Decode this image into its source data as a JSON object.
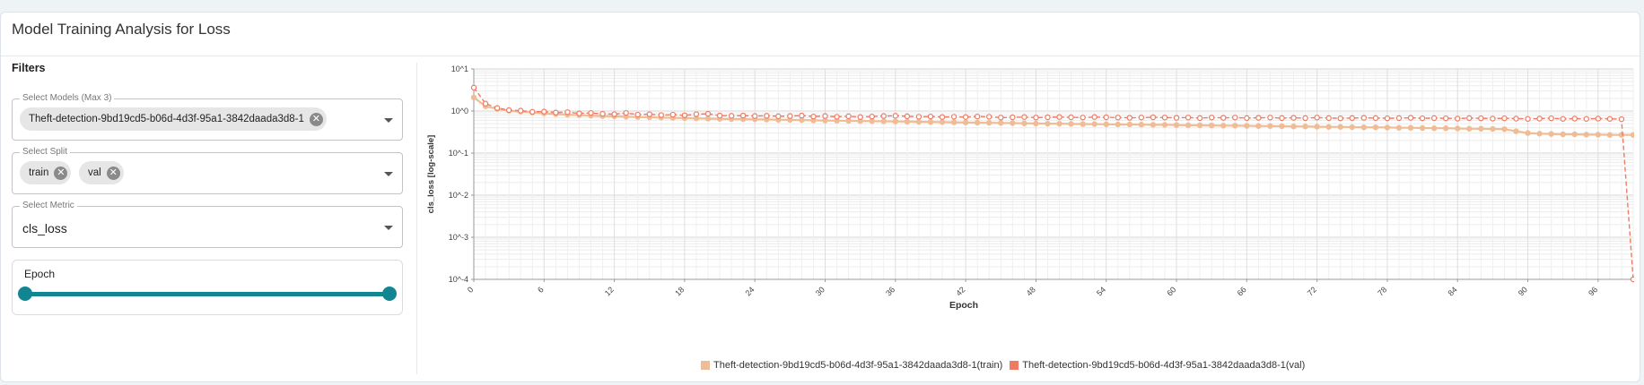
{
  "card": {
    "title": "Model Training Analysis for Loss"
  },
  "filters": {
    "heading": "Filters",
    "models": {
      "legend": "Select Models (Max 3)",
      "chips": [
        "Theft-detection-9bd19cd5-b06d-4d3f-95a1-3842daada3d8-1"
      ]
    },
    "split": {
      "legend": "Select Split",
      "chips": [
        "train",
        "val"
      ]
    },
    "metric": {
      "legend": "Select Metric",
      "value": "cls_loss"
    },
    "epoch_slider": {
      "label": "Epoch",
      "range": [
        0,
        99
      ],
      "value": [
        0,
        99
      ]
    }
  },
  "icons": {
    "chip_remove": "close-circle-icon",
    "dropdown": "chevron-down-icon"
  },
  "colors": {
    "accent": "#128593",
    "train": "#f0bc96",
    "val": "#f07a62"
  },
  "chart_data": {
    "type": "line",
    "xlabel": "Epoch",
    "ylabel": "cls_loss [log-scale]",
    "yscale": "log",
    "ylim": [
      0.0001,
      10
    ],
    "xlim": [
      0,
      99
    ],
    "ytick_labels": [
      "10^1",
      "10^0",
      "10^-1",
      "10^-2",
      "10^-3",
      "10^-4"
    ],
    "xticks": [
      0,
      6,
      12,
      18,
      24,
      30,
      36,
      42,
      48,
      54,
      60,
      66,
      72,
      78,
      84,
      90,
      96
    ],
    "grid": true,
    "legend_position": "bottom",
    "series": [
      {
        "name": "Theft-detection-9bd19cd5-b06d-4d3f-95a1-3842daada3d8-1(train)",
        "color": "#f0bc96",
        "values": [
          2.1,
          1.3,
          1.12,
          1.02,
          0.97,
          0.92,
          0.88,
          0.85,
          0.82,
          0.8,
          0.78,
          0.76,
          0.75,
          0.73,
          0.72,
          0.71,
          0.7,
          0.69,
          0.68,
          0.67,
          0.66,
          0.65,
          0.645,
          0.64,
          0.635,
          0.63,
          0.62,
          0.615,
          0.61,
          0.6,
          0.595,
          0.59,
          0.585,
          0.58,
          0.575,
          0.57,
          0.565,
          0.56,
          0.555,
          0.55,
          0.545,
          0.54,
          0.535,
          0.53,
          0.525,
          0.52,
          0.515,
          0.51,
          0.505,
          0.5,
          0.5,
          0.495,
          0.49,
          0.49,
          0.485,
          0.48,
          0.48,
          0.475,
          0.47,
          0.47,
          0.465,
          0.46,
          0.46,
          0.455,
          0.45,
          0.45,
          0.445,
          0.44,
          0.44,
          0.435,
          0.43,
          0.43,
          0.425,
          0.42,
          0.42,
          0.415,
          0.41,
          0.41,
          0.405,
          0.4,
          0.4,
          0.395,
          0.39,
          0.39,
          0.385,
          0.38,
          0.38,
          0.375,
          0.37,
          0.33,
          0.3,
          0.29,
          0.285,
          0.28,
          0.28,
          0.275,
          0.275,
          0.27,
          0.27,
          0.27
        ]
      },
      {
        "name": "Theft-detection-9bd19cd5-b06d-4d3f-95a1-3842daada3d8-1(val)",
        "color": "#f07a62",
        "values": [
          3.6,
          1.5,
          1.18,
          1.05,
          1.02,
          0.96,
          0.97,
          0.92,
          0.94,
          0.88,
          0.9,
          0.86,
          0.84,
          0.9,
          0.82,
          0.84,
          0.8,
          0.82,
          0.79,
          0.84,
          0.86,
          0.78,
          0.77,
          0.78,
          0.76,
          0.77,
          0.75,
          0.76,
          0.78,
          0.74,
          0.76,
          0.73,
          0.75,
          0.72,
          0.74,
          0.76,
          0.77,
          0.75,
          0.73,
          0.74,
          0.72,
          0.73,
          0.72,
          0.74,
          0.73,
          0.7,
          0.71,
          0.72,
          0.7,
          0.71,
          0.72,
          0.71,
          0.7,
          0.72,
          0.71,
          0.7,
          0.69,
          0.7,
          0.71,
          0.7,
          0.69,
          0.7,
          0.68,
          0.7,
          0.69,
          0.7,
          0.68,
          0.69,
          0.7,
          0.68,
          0.69,
          0.68,
          0.7,
          0.68,
          0.67,
          0.68,
          0.69,
          0.68,
          0.67,
          0.68,
          0.69,
          0.67,
          0.68,
          0.67,
          0.66,
          0.68,
          0.67,
          0.66,
          0.67,
          0.66,
          0.65,
          0.66,
          0.67,
          0.65,
          0.66,
          0.65,
          0.66,
          0.65,
          0.64,
          0.0001
        ]
      }
    ]
  }
}
